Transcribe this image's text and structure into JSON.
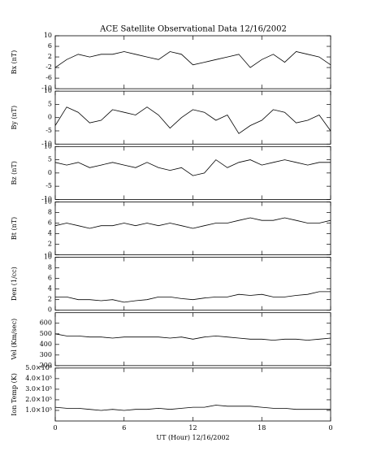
{
  "title": "ACE Satellite Observational Data   12/16/2002",
  "chart_data": [
    {
      "type": "line",
      "ylabel": "Bx (nT)",
      "ylim": [
        -10,
        10
      ],
      "yticks": [
        -10,
        -6,
        -2,
        2,
        6,
        10
      ],
      "xlim": [
        0,
        24
      ],
      "xticks": [
        0,
        6,
        12,
        18,
        {
          "value": 24,
          "label": "0"
        }
      ],
      "x": [
        0,
        1,
        2,
        3,
        4,
        5,
        6,
        7,
        8,
        9,
        10,
        11,
        12,
        13,
        14,
        15,
        16,
        17,
        18,
        19,
        20,
        21,
        22,
        23,
        24
      ],
      "values": [
        -2,
        1,
        3,
        2,
        3,
        3,
        4,
        3,
        2,
        1,
        4,
        3,
        -1,
        0,
        1,
        2,
        3,
        -2,
        1,
        3,
        0,
        4,
        3,
        2,
        -1
      ]
    },
    {
      "type": "line",
      "ylabel": "By (nT)",
      "ylim": [
        -10,
        10
      ],
      "yticks": [
        -10,
        -5,
        0,
        5,
        10
      ],
      "xlim": [
        0,
        24
      ],
      "xticks": [
        0,
        6,
        12,
        18,
        {
          "value": 24,
          "label": "0"
        }
      ],
      "x": [
        0,
        1,
        2,
        3,
        4,
        5,
        6,
        7,
        8,
        9,
        10,
        11,
        12,
        13,
        14,
        15,
        16,
        17,
        18,
        19,
        20,
        21,
        22,
        23,
        24
      ],
      "values": [
        -3,
        4,
        2,
        -2,
        -1,
        3,
        2,
        1,
        4,
        1,
        -4,
        0,
        3,
        2,
        -1,
        1,
        -6,
        -3,
        -1,
        3,
        2,
        -2,
        -1,
        1,
        -5
      ]
    },
    {
      "type": "line",
      "ylabel": "Bz (nT)",
      "ylim": [
        -10,
        10
      ],
      "yticks": [
        -10,
        -5,
        0,
        5,
        10
      ],
      "xlim": [
        0,
        24
      ],
      "xticks": [
        0,
        6,
        12,
        18,
        {
          "value": 24,
          "label": "0"
        }
      ],
      "x": [
        0,
        1,
        2,
        3,
        4,
        5,
        6,
        7,
        8,
        9,
        10,
        11,
        12,
        13,
        14,
        15,
        16,
        17,
        18,
        19,
        20,
        21,
        22,
        23,
        24
      ],
      "values": [
        4,
        3,
        4,
        2,
        3,
        4,
        3,
        2,
        4,
        2,
        1,
        2,
        -1,
        0,
        5,
        2,
        4,
        5,
        3,
        4,
        5,
        4,
        3,
        4,
        4
      ]
    },
    {
      "type": "line",
      "ylabel": "Bt (nT)",
      "ylim": [
        0,
        10
      ],
      "yticks": [
        0,
        2,
        4,
        6,
        8,
        10
      ],
      "xlim": [
        0,
        24
      ],
      "xticks": [
        0,
        6,
        12,
        18,
        {
          "value": 24,
          "label": "0"
        }
      ],
      "x": [
        0,
        1,
        2,
        3,
        4,
        5,
        6,
        7,
        8,
        9,
        10,
        11,
        12,
        13,
        14,
        15,
        16,
        17,
        18,
        19,
        20,
        21,
        22,
        23,
        24
      ],
      "values": [
        5.5,
        6,
        5.5,
        5,
        5.5,
        5.5,
        6,
        5.5,
        6,
        5.5,
        6,
        5.5,
        5,
        5.5,
        6,
        6,
        6.5,
        7,
        6.5,
        6.5,
        7,
        6.5,
        6,
        6,
        6.5
      ]
    },
    {
      "type": "line",
      "ylabel": "Den (1/cc)",
      "ylim": [
        0,
        10
      ],
      "yticks": [
        0,
        2,
        4,
        6,
        8,
        10
      ],
      "xlim": [
        0,
        24
      ],
      "xticks": [
        0,
        6,
        12,
        18,
        {
          "value": 24,
          "label": "0"
        }
      ],
      "x": [
        0,
        1,
        2,
        3,
        4,
        5,
        6,
        7,
        8,
        9,
        10,
        11,
        12,
        13,
        14,
        15,
        16,
        17,
        18,
        19,
        20,
        21,
        22,
        23,
        24
      ],
      "values": [
        2.5,
        2.5,
        2,
        2,
        1.8,
        2,
        1.5,
        1.8,
        2,
        2.5,
        2.5,
        2.2,
        2,
        2.3,
        2.5,
        2.5,
        3,
        2.8,
        3,
        2.5,
        2.5,
        2.8,
        3,
        3.5,
        3.5
      ]
    },
    {
      "type": "line",
      "ylabel": "Vel (Km/sec)",
      "ylim": [
        200,
        700
      ],
      "yticks": [
        200,
        300,
        400,
        500,
        600
      ],
      "xlim": [
        0,
        24
      ],
      "xticks": [
        0,
        6,
        12,
        18,
        {
          "value": 24,
          "label": "0"
        }
      ],
      "x": [
        0,
        1,
        2,
        3,
        4,
        5,
        6,
        7,
        8,
        9,
        10,
        11,
        12,
        13,
        14,
        15,
        16,
        17,
        18,
        19,
        20,
        21,
        22,
        23,
        24
      ],
      "values": [
        500,
        480,
        480,
        470,
        470,
        460,
        470,
        470,
        470,
        470,
        460,
        470,
        450,
        470,
        480,
        470,
        460,
        450,
        450,
        440,
        450,
        450,
        440,
        450,
        460
      ]
    },
    {
      "type": "line",
      "ylabel": "Ion Temp (K)",
      "xlabel": "UT (Hour)  12/16/2002",
      "ylim": [
        0,
        500000
      ],
      "yticks": [
        {
          "value": 100000,
          "label": "1.0×10⁵"
        },
        {
          "value": 200000,
          "label": "2.0×10⁵"
        },
        {
          "value": 300000,
          "label": "3.0×10⁵"
        },
        {
          "value": 400000,
          "label": "4.0×10⁵"
        },
        {
          "value": 500000,
          "label": "5.0×10⁵"
        }
      ],
      "xlim": [
        0,
        24
      ],
      "xticks": [
        0,
        6,
        12,
        18,
        {
          "value": 24,
          "label": "0"
        }
      ],
      "x": [
        0,
        1,
        2,
        3,
        4,
        5,
        6,
        7,
        8,
        9,
        10,
        11,
        12,
        13,
        14,
        15,
        16,
        17,
        18,
        19,
        20,
        21,
        22,
        23,
        24
      ],
      "values": [
        130000,
        120000,
        120000,
        110000,
        100000,
        110000,
        100000,
        110000,
        110000,
        120000,
        110000,
        120000,
        130000,
        130000,
        150000,
        140000,
        140000,
        140000,
        130000,
        120000,
        120000,
        110000,
        110000,
        110000,
        110000
      ]
    }
  ]
}
